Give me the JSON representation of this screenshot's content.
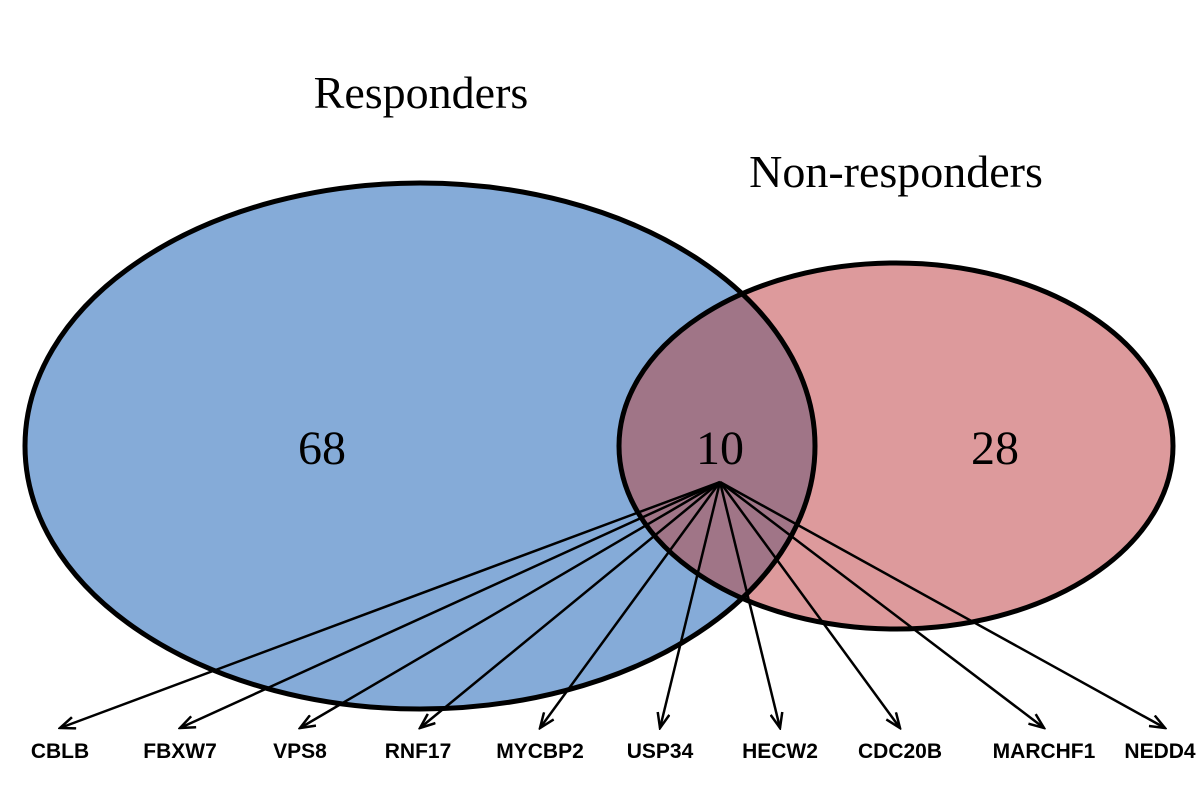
{
  "sets": {
    "responders": {
      "label": "Responders",
      "only_count": "68",
      "color": "#85abd8"
    },
    "non_responders": {
      "label": "Non-responders",
      "only_count": "28",
      "color": "#dd9a9c"
    }
  },
  "overlap": {
    "count": "10",
    "color": "#a07587"
  },
  "shared_genes": [
    "CBLB",
    "FBXW7",
    "VPS8",
    "RNF17",
    "MYCBP2",
    "USP34",
    "HECW2",
    "CDC20B",
    "MARCHF1",
    "NEDD4"
  ]
}
